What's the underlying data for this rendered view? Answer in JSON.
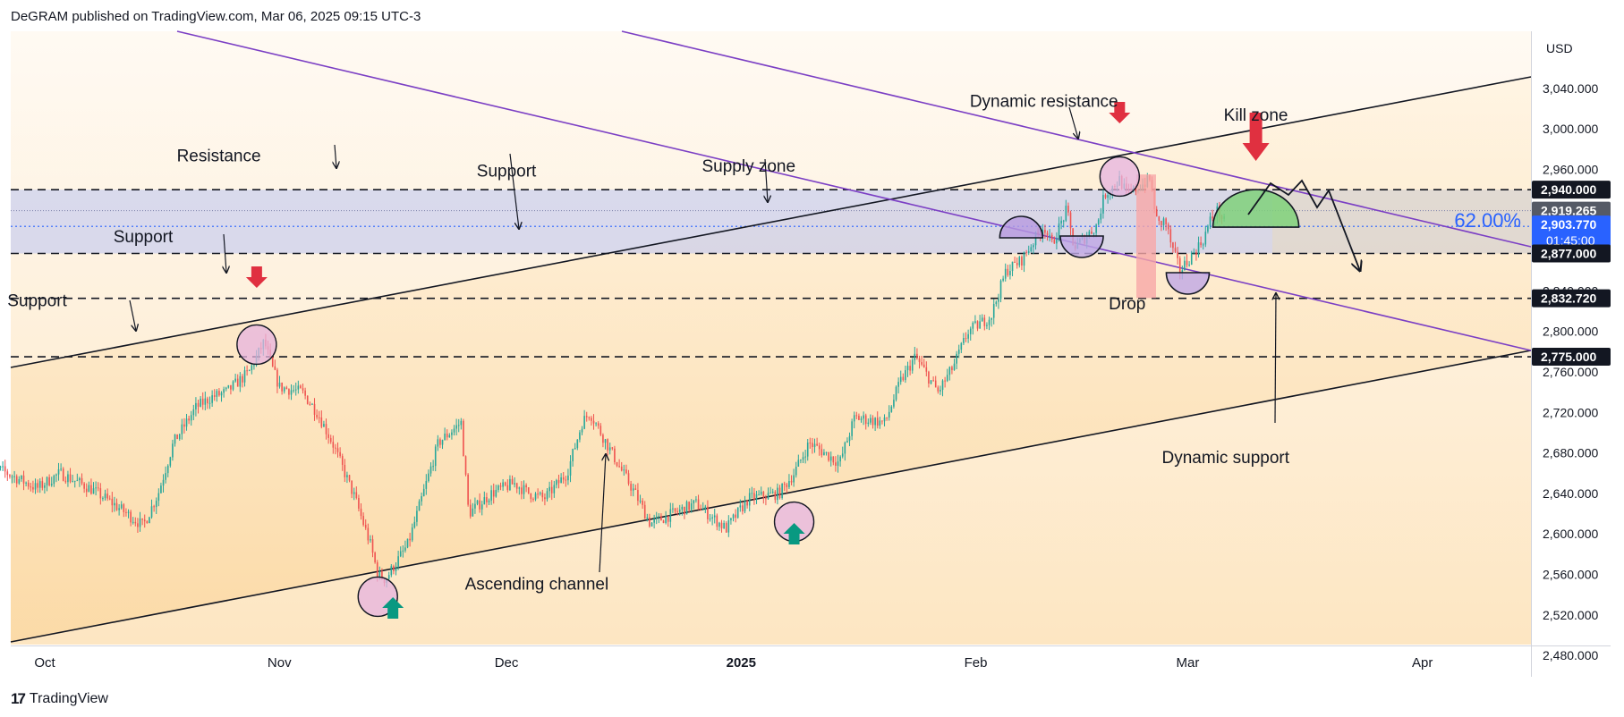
{
  "header": {
    "publisher": "DeGRAM published on TradingView.com, Mar 06, 2025 09:15 UTC-3"
  },
  "footer": {
    "brand": "TradingView"
  },
  "colors": {
    "bull": "#26a69a",
    "bear": "#ef5350",
    "channel": "#7b3fc4",
    "supply_zone": "#c5cbef",
    "kill_zone": "#7fd17a",
    "drop_bar": "#f7a8a8",
    "marker": "#e6b3df",
    "up_arrow": "#089981",
    "down_arrow": "#e03040"
  },
  "chart_data": {
    "type": "candlestick",
    "currency": "USD",
    "yticks": [
      "2,480.000",
      "2,520.000",
      "2,560.000",
      "2,600.000",
      "2,640.000",
      "2,680.000",
      "2,720.000",
      "2,760.000",
      "2,800.000",
      "2,840.000",
      "2,960.000",
      "3,000.000",
      "3,040.000"
    ],
    "xticks": [
      {
        "label": "Oct",
        "date": "2024-10-01",
        "bold": false
      },
      {
        "label": "Nov",
        "date": "2024-11-01",
        "bold": false
      },
      {
        "label": "Dec",
        "date": "2024-12-01",
        "bold": false
      },
      {
        "label": "2025",
        "date": "2025-01-01",
        "bold": true
      },
      {
        "label": "Feb",
        "date": "2025-02-01",
        "bold": false
      },
      {
        "label": "Mar",
        "date": "2025-03-01",
        "bold": false
      },
      {
        "label": "Apr",
        "date": "2025-04-01",
        "bold": false
      }
    ],
    "price_labels": [
      {
        "text": "2,940.000",
        "price": 2940,
        "style": "dark"
      },
      {
        "text": "2,919.265",
        "price": 2919.265,
        "style": "gray"
      },
      {
        "text": "2,903.770",
        "sub": "01:45:00",
        "price": 2903.77,
        "style": "blue"
      },
      {
        "text": "2,877.000",
        "price": 2877,
        "style": "dark"
      },
      {
        "text": "2,832.720",
        "price": 2832.72,
        "style": "dark"
      },
      {
        "text": "2,775.000",
        "price": 2775,
        "style": "dark"
      }
    ],
    "horizontal_levels": [
      2940,
      2877,
      2832.72,
      2775
    ],
    "supply_zone": [
      2877,
      2940
    ],
    "fib_label": "62.00%",
    "price_path": [
      [
        "2024-09-23",
        2670
      ],
      [
        "2024-09-26",
        2660
      ],
      [
        "2024-09-30",
        2645
      ],
      [
        "2024-10-03",
        2660
      ],
      [
        "2024-10-07",
        2645
      ],
      [
        "2024-10-10",
        2630
      ],
      [
        "2024-10-14",
        2608
      ],
      [
        "2024-10-16",
        2640
      ],
      [
        "2024-10-18",
        2690
      ],
      [
        "2024-10-21",
        2725
      ],
      [
        "2024-10-23",
        2735
      ],
      [
        "2024-10-25",
        2740
      ],
      [
        "2024-10-28",
        2760
      ],
      [
        "2024-10-30",
        2790
      ],
      [
        "2024-10-31",
        2765
      ],
      [
        "2024-11-01",
        2745
      ],
      [
        "2024-11-04",
        2740
      ],
      [
        "2024-11-06",
        2720
      ],
      [
        "2024-11-08",
        2690
      ],
      [
        "2024-11-11",
        2635
      ],
      [
        "2024-11-13",
        2590
      ],
      [
        "2024-11-14",
        2560
      ],
      [
        "2024-11-15",
        2555
      ],
      [
        "2024-11-18",
        2590
      ],
      [
        "2024-11-20",
        2640
      ],
      [
        "2024-11-22",
        2690
      ],
      [
        "2024-11-25",
        2710
      ],
      [
        "2024-11-26",
        2620
      ],
      [
        "2024-11-29",
        2640
      ],
      [
        "2024-12-02",
        2650
      ],
      [
        "2024-12-04",
        2640
      ],
      [
        "2024-12-06",
        2635
      ],
      [
        "2024-12-09",
        2660
      ],
      [
        "2024-12-11",
        2710
      ],
      [
        "2024-12-12",
        2720
      ],
      [
        "2024-12-16",
        2665
      ],
      [
        "2024-12-18",
        2640
      ],
      [
        "2024-12-20",
        2610
      ],
      [
        "2024-12-23",
        2620
      ],
      [
        "2024-12-26",
        2630
      ],
      [
        "2024-12-30",
        2605
      ],
      [
        "2025-01-02",
        2635
      ],
      [
        "2025-01-06",
        2640
      ],
      [
        "2025-01-08",
        2660
      ],
      [
        "2025-01-10",
        2690
      ],
      [
        "2025-01-14",
        2670
      ],
      [
        "2025-01-16",
        2715
      ],
      [
        "2025-01-20",
        2710
      ],
      [
        "2025-01-22",
        2750
      ],
      [
        "2025-01-24",
        2775
      ],
      [
        "2025-01-27",
        2740
      ],
      [
        "2025-01-29",
        2765
      ],
      [
        "2025-01-31",
        2800
      ],
      [
        "2025-02-03",
        2815
      ],
      [
        "2025-02-05",
        2860
      ],
      [
        "2025-02-07",
        2870
      ],
      [
        "2025-02-10",
        2905
      ],
      [
        "2025-02-11",
        2885
      ],
      [
        "2025-02-13",
        2920
      ],
      [
        "2025-02-14",
        2882
      ],
      [
        "2025-02-17",
        2905
      ],
      [
        "2025-02-18",
        2935
      ],
      [
        "2025-02-20",
        2950
      ],
      [
        "2025-02-21",
        2935
      ],
      [
        "2025-02-24",
        2950
      ],
      [
        "2025-02-25",
        2905
      ],
      [
        "2025-02-26",
        2910
      ],
      [
        "2025-02-27",
        2880
      ],
      [
        "2025-02-28",
        2860
      ],
      [
        "2025-03-03",
        2890
      ],
      [
        "2025-03-04",
        2910
      ],
      [
        "2025-03-05",
        2920
      ],
      [
        "2025-03-06",
        2905
      ]
    ],
    "annotations": [
      {
        "text": "Resistance",
        "date": "2024-10-24",
        "price": 2968
      },
      {
        "text": "Support",
        "date": "2024-12-01",
        "price": 2953
      },
      {
        "text": "Supply zone",
        "date": "2025-01-02",
        "price": 2958
      },
      {
        "text": "Support",
        "date": "2024-10-14",
        "price": 2888
      },
      {
        "text": "Support",
        "date": "2024-09-30",
        "price": 2825
      },
      {
        "text": "Dynamic resistance",
        "date": "2025-02-10",
        "price": 3022
      },
      {
        "text": "Kill zone",
        "date": "2025-03-10",
        "price": 3008
      },
      {
        "text": "Drop",
        "date": "2025-02-21",
        "price": 2822
      },
      {
        "text": "Dynamic support",
        "date": "2025-03-06",
        "price": 2670
      },
      {
        "text": "Ascending channel",
        "date": "2024-12-05",
        "price": 2545
      }
    ]
  }
}
